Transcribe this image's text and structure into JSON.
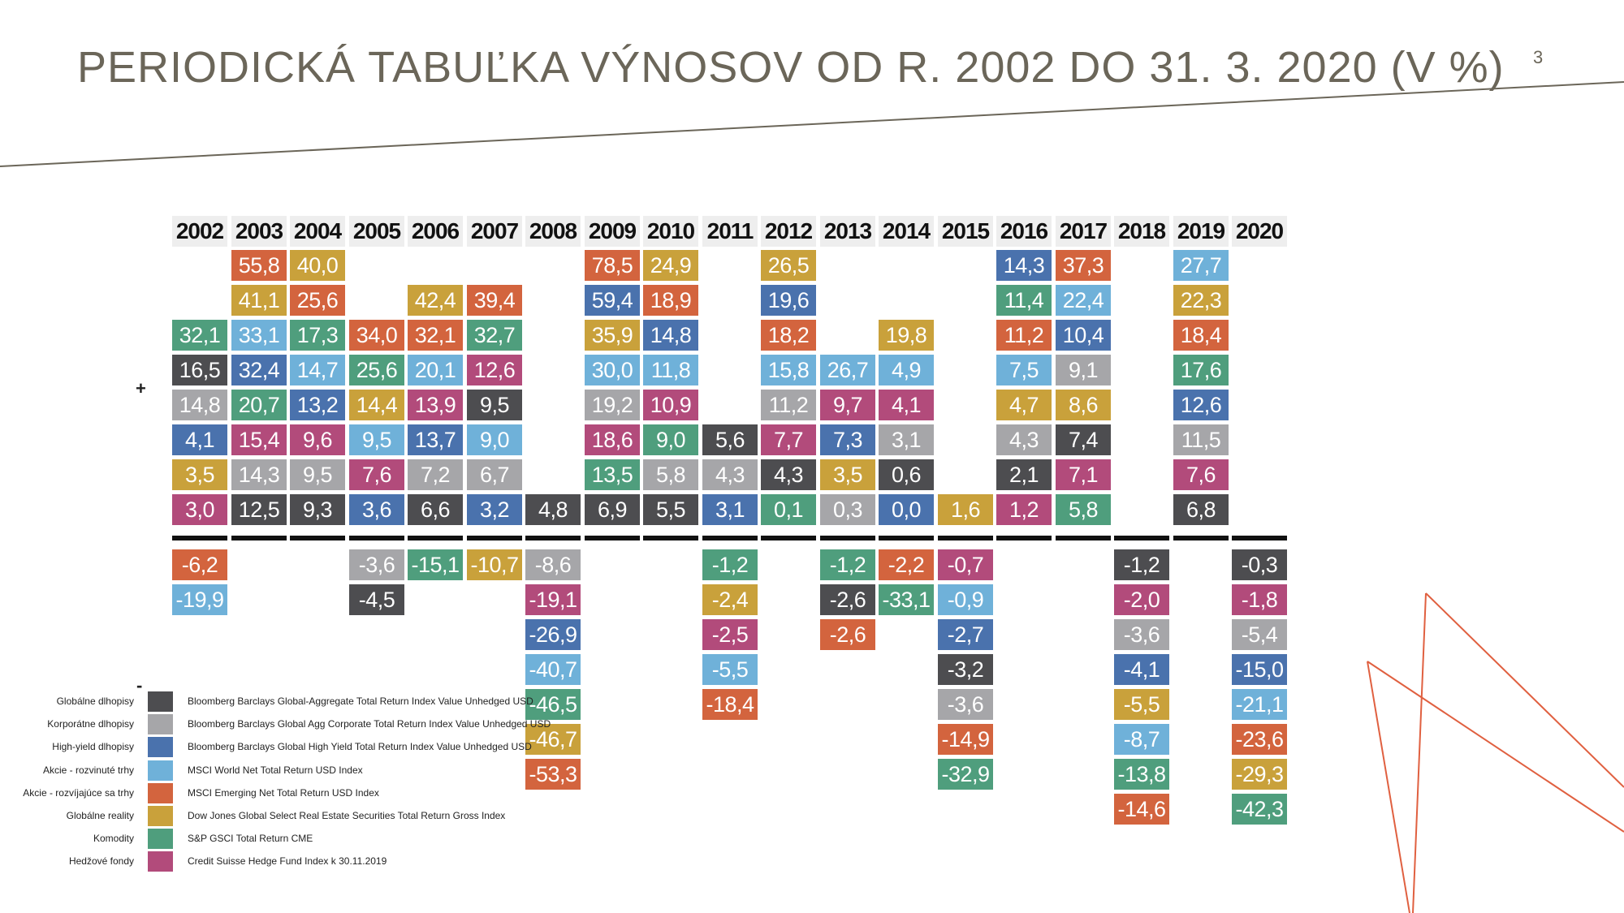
{
  "title": "PERIODICKÁ TABUĽKA VÝNOSOV OD R. 2002 DO 31. 3. 2020 (V %)",
  "page_number": "3",
  "plus_sign": "+",
  "minus_sign": "-",
  "colors": {
    "global_bonds": "#4d4d50",
    "corporate_bonds": "#a6a6a9",
    "high_yield": "#4a72ad",
    "developed_equity": "#6fb1d9",
    "emerging_equity": "#d3643e",
    "real_estate": "#c9a13b",
    "commodities": "#4f9e7d",
    "hedge_funds": "#b24b7b"
  },
  "legend": [
    {
      "key": "global_bonds",
      "label": "Globálne dlhopisy",
      "desc": "Bloomberg Barclays Global-Aggregate Total Return Index Value Unhedged USD"
    },
    {
      "key": "corporate_bonds",
      "label": "Korporátne dlhopisy",
      "desc": "Bloomberg Barclays Global Agg Corporate Total Return Index Value Unhedged USD"
    },
    {
      "key": "high_yield",
      "label": "High-yield dlhopisy",
      "desc": "Bloomberg Barclays Global High Yield Total Return Index Value Unhedged USD"
    },
    {
      "key": "developed_equity",
      "label": "Akcie - rozvinuté trhy",
      "desc": "MSCI World Net Total Return USD Index"
    },
    {
      "key": "emerging_equity",
      "label": "Akcie - rozvíjajúce sa trhy",
      "desc": "MSCI Emerging Net Total Return USD Index"
    },
    {
      "key": "real_estate",
      "label": "Globálne reality",
      "desc": "Dow Jones Global Select Real Estate Securities Total Return Gross Index"
    },
    {
      "key": "commodities",
      "label": "Komodity",
      "desc": "S&P GSCI Total Return CME"
    },
    {
      "key": "hedge_funds",
      "label": "Hedžové fondy",
      "desc": "Credit Suisse Hedge Fund Index k 30.11.2019"
    }
  ],
  "chart_data": {
    "type": "table",
    "categories": [
      "2002",
      "2003",
      "2004",
      "2005",
      "2006",
      "2007",
      "2008",
      "2009",
      "2010",
      "2011",
      "2012",
      "2013",
      "2014",
      "2015",
      "2016",
      "2017",
      "2018",
      "2019",
      "2020"
    ],
    "columns": [
      {
        "year": "2002",
        "positive": [
          [
            "32,1",
            "commodities"
          ],
          [
            "16,5",
            "global_bonds"
          ],
          [
            "14,8",
            "corporate_bonds"
          ],
          [
            "4,1",
            "high_yield"
          ],
          [
            "3,5",
            "real_estate"
          ],
          [
            "3,0",
            "hedge_funds"
          ]
        ],
        "negative": [
          [
            "-6,2",
            "emerging_equity"
          ],
          [
            "-19,9",
            "developed_equity"
          ]
        ]
      },
      {
        "year": "2003",
        "positive": [
          [
            "55,8",
            "emerging_equity"
          ],
          [
            "41,1",
            "real_estate"
          ],
          [
            "33,1",
            "developed_equity"
          ],
          [
            "32,4",
            "high_yield"
          ],
          [
            "20,7",
            "commodities"
          ],
          [
            "15,4",
            "hedge_funds"
          ],
          [
            "14,3",
            "corporate_bonds"
          ],
          [
            "12,5",
            "global_bonds"
          ]
        ],
        "negative": []
      },
      {
        "year": "2004",
        "positive": [
          [
            "40,0",
            "real_estate"
          ],
          [
            "25,6",
            "emerging_equity"
          ],
          [
            "17,3",
            "commodities"
          ],
          [
            "14,7",
            "developed_equity"
          ],
          [
            "13,2",
            "high_yield"
          ],
          [
            "9,6",
            "hedge_funds"
          ],
          [
            "9,5",
            "corporate_bonds"
          ],
          [
            "9,3",
            "global_bonds"
          ]
        ],
        "negative": []
      },
      {
        "year": "2005",
        "positive": [
          [
            "34,0",
            "emerging_equity"
          ],
          [
            "25,6",
            "commodities"
          ],
          [
            "14,4",
            "real_estate"
          ],
          [
            "9,5",
            "developed_equity"
          ],
          [
            "7,6",
            "hedge_funds"
          ],
          [
            "3,6",
            "high_yield"
          ]
        ],
        "negative": [
          [
            "-3,6",
            "corporate_bonds"
          ],
          [
            "-4,5",
            "global_bonds"
          ]
        ]
      },
      {
        "year": "2006",
        "positive": [
          [
            "42,4",
            "real_estate"
          ],
          [
            "32,1",
            "emerging_equity"
          ],
          [
            "20,1",
            "developed_equity"
          ],
          [
            "13,9",
            "hedge_funds"
          ],
          [
            "13,7",
            "high_yield"
          ],
          [
            "7,2",
            "corporate_bonds"
          ],
          [
            "6,6",
            "global_bonds"
          ]
        ],
        "negative": [
          [
            "-15,1",
            "commodities"
          ]
        ]
      },
      {
        "year": "2007",
        "positive": [
          [
            "39,4",
            "emerging_equity"
          ],
          [
            "32,7",
            "commodities"
          ],
          [
            "12,6",
            "hedge_funds"
          ],
          [
            "9,5",
            "global_bonds"
          ],
          [
            "9,0",
            "developed_equity"
          ],
          [
            "6,7",
            "corporate_bonds"
          ],
          [
            "3,2",
            "high_yield"
          ]
        ],
        "negative": [
          [
            "-10,7",
            "real_estate"
          ]
        ]
      },
      {
        "year": "2008",
        "positive": [
          [
            "4,8",
            "global_bonds"
          ]
        ],
        "negative": [
          [
            "-8,6",
            "corporate_bonds"
          ],
          [
            "-19,1",
            "hedge_funds"
          ],
          [
            "-26,9",
            "high_yield"
          ],
          [
            "-40,7",
            "developed_equity"
          ],
          [
            "-46,5",
            "commodities"
          ],
          [
            "-46,7",
            "real_estate"
          ],
          [
            "-53,3",
            "emerging_equity"
          ]
        ]
      },
      {
        "year": "2009",
        "positive": [
          [
            "78,5",
            "emerging_equity"
          ],
          [
            "59,4",
            "high_yield"
          ],
          [
            "35,9",
            "real_estate"
          ],
          [
            "30,0",
            "developed_equity"
          ],
          [
            "19,2",
            "corporate_bonds"
          ],
          [
            "18,6",
            "hedge_funds"
          ],
          [
            "13,5",
            "commodities"
          ],
          [
            "6,9",
            "global_bonds"
          ]
        ],
        "negative": []
      },
      {
        "year": "2010",
        "positive": [
          [
            "24,9",
            "real_estate"
          ],
          [
            "18,9",
            "emerging_equity"
          ],
          [
            "14,8",
            "high_yield"
          ],
          [
            "11,8",
            "developed_equity"
          ],
          [
            "10,9",
            "hedge_funds"
          ],
          [
            "9,0",
            "commodities"
          ],
          [
            "5,8",
            "corporate_bonds"
          ],
          [
            "5,5",
            "global_bonds"
          ]
        ],
        "negative": []
      },
      {
        "year": "2011",
        "positive": [
          [
            "5,6",
            "global_bonds"
          ],
          [
            "4,3",
            "corporate_bonds"
          ],
          [
            "3,1",
            "high_yield"
          ]
        ],
        "negative": [
          [
            "-1,2",
            "commodities"
          ],
          [
            "-2,4",
            "real_estate"
          ],
          [
            "-2,5",
            "hedge_funds"
          ],
          [
            "-5,5",
            "developed_equity"
          ],
          [
            "-18,4",
            "emerging_equity"
          ]
        ]
      },
      {
        "year": "2012",
        "positive": [
          [
            "26,5",
            "real_estate"
          ],
          [
            "19,6",
            "high_yield"
          ],
          [
            "18,2",
            "emerging_equity"
          ],
          [
            "15,8",
            "developed_equity"
          ],
          [
            "11,2",
            "corporate_bonds"
          ],
          [
            "7,7",
            "hedge_funds"
          ],
          [
            "4,3",
            "global_bonds"
          ],
          [
            "0,1",
            "commodities"
          ]
        ],
        "negative": []
      },
      {
        "year": "2013",
        "positive": [
          [
            "26,7",
            "developed_equity"
          ],
          [
            "9,7",
            "hedge_funds"
          ],
          [
            "7,3",
            "high_yield"
          ],
          [
            "3,5",
            "real_estate"
          ],
          [
            "0,3",
            "corporate_bonds"
          ]
        ],
        "negative": [
          [
            "-1,2",
            "commodities"
          ],
          [
            "-2,6",
            "global_bonds"
          ],
          [
            "-2,6",
            "emerging_equity"
          ]
        ]
      },
      {
        "year": "2014",
        "positive": [
          [
            "19,8",
            "real_estate"
          ],
          [
            "4,9",
            "developed_equity"
          ],
          [
            "4,1",
            "hedge_funds"
          ],
          [
            "3,1",
            "corporate_bonds"
          ],
          [
            "0,6",
            "global_bonds"
          ],
          [
            "0,0",
            "high_yield"
          ]
        ],
        "negative": [
          [
            "-2,2",
            "emerging_equity"
          ],
          [
            "-33,1",
            "commodities"
          ]
        ]
      },
      {
        "year": "2015",
        "positive": [
          [
            "1,6",
            "real_estate"
          ]
        ],
        "negative": [
          [
            "-0,7",
            "hedge_funds"
          ],
          [
            "-0,9",
            "developed_equity"
          ],
          [
            "-2,7",
            "high_yield"
          ],
          [
            "-3,2",
            "global_bonds"
          ],
          [
            "-3,6",
            "corporate_bonds"
          ],
          [
            "-14,9",
            "emerging_equity"
          ],
          [
            "-32,9",
            "commodities"
          ]
        ]
      },
      {
        "year": "2016",
        "positive": [
          [
            "14,3",
            "high_yield"
          ],
          [
            "11,4",
            "commodities"
          ],
          [
            "11,2",
            "emerging_equity"
          ],
          [
            "7,5",
            "developed_equity"
          ],
          [
            "4,7",
            "real_estate"
          ],
          [
            "4,3",
            "corporate_bonds"
          ],
          [
            "2,1",
            "global_bonds"
          ],
          [
            "1,2",
            "hedge_funds"
          ]
        ],
        "negative": []
      },
      {
        "year": "2017",
        "positive": [
          [
            "37,3",
            "emerging_equity"
          ],
          [
            "22,4",
            "developed_equity"
          ],
          [
            "10,4",
            "high_yield"
          ],
          [
            "9,1",
            "corporate_bonds"
          ],
          [
            "8,6",
            "real_estate"
          ],
          [
            "7,4",
            "global_bonds"
          ],
          [
            "7,1",
            "hedge_funds"
          ],
          [
            "5,8",
            "commodities"
          ]
        ],
        "negative": []
      },
      {
        "year": "2018",
        "positive": [],
        "negative": [
          [
            "-1,2",
            "global_bonds"
          ],
          [
            "-2,0",
            "hedge_funds"
          ],
          [
            "-3,6",
            "corporate_bonds"
          ],
          [
            "-4,1",
            "high_yield"
          ],
          [
            "-5,5",
            "real_estate"
          ],
          [
            "-8,7",
            "developed_equity"
          ],
          [
            "-13,8",
            "commodities"
          ],
          [
            "-14,6",
            "emerging_equity"
          ]
        ]
      },
      {
        "year": "2019",
        "positive": [
          [
            "27,7",
            "developed_equity"
          ],
          [
            "22,3",
            "real_estate"
          ],
          [
            "18,4",
            "emerging_equity"
          ],
          [
            "17,6",
            "commodities"
          ],
          [
            "12,6",
            "high_yield"
          ],
          [
            "11,5",
            "corporate_bonds"
          ],
          [
            "7,6",
            "hedge_funds"
          ],
          [
            "6,8",
            "global_bonds"
          ]
        ],
        "negative": []
      },
      {
        "year": "2020",
        "positive": [],
        "negative": [
          [
            "-0,3",
            "global_bonds"
          ],
          [
            "-1,8",
            "hedge_funds"
          ],
          [
            "-5,4",
            "corporate_bonds"
          ],
          [
            "-15,0",
            "high_yield"
          ],
          [
            "-21,1",
            "developed_equity"
          ],
          [
            "-23,6",
            "emerging_equity"
          ],
          [
            "-29,3",
            "real_estate"
          ],
          [
            "-42,3",
            "commodities"
          ]
        ]
      }
    ]
  }
}
